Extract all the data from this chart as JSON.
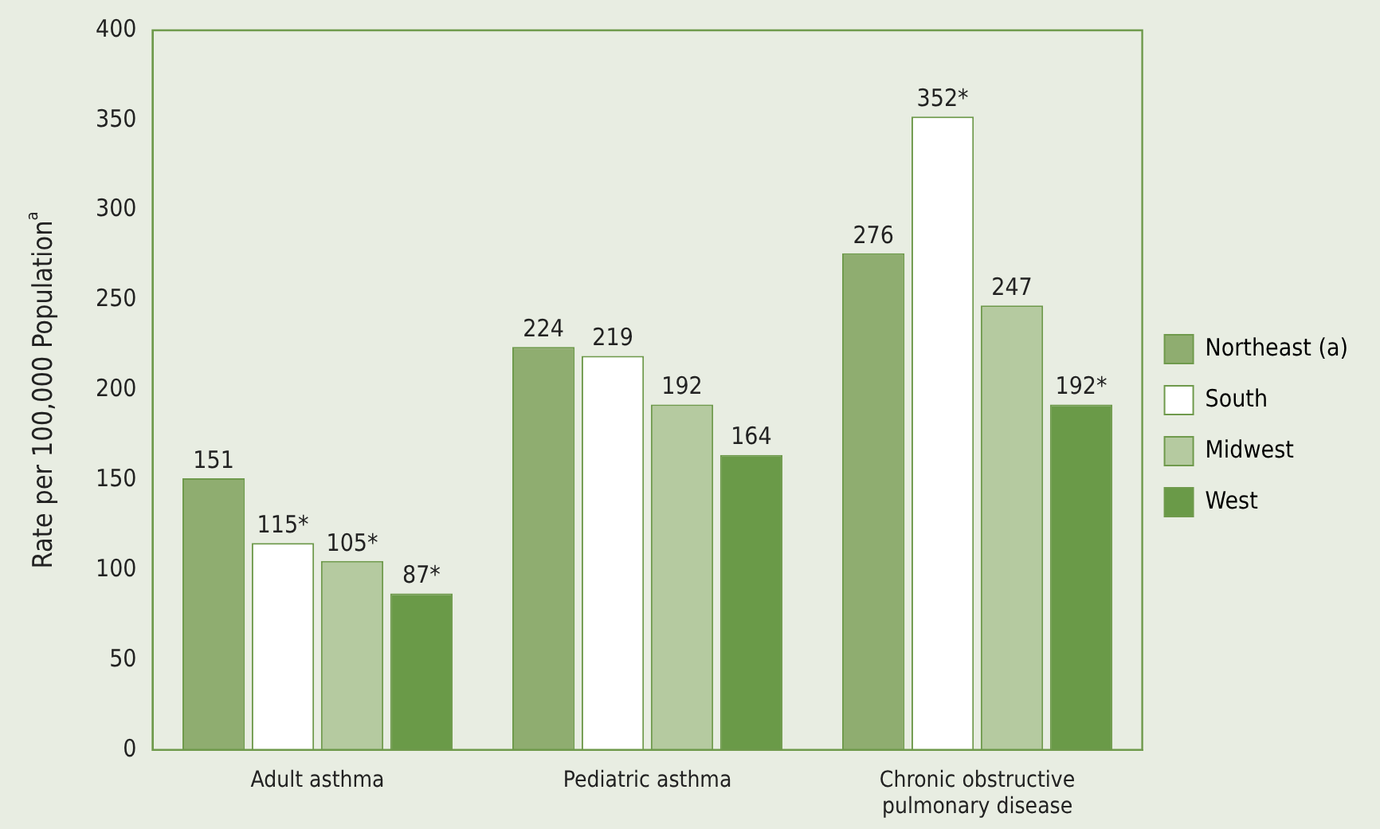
{
  "chart_data": {
    "type": "bar",
    "ylabel": "Rate per 100,000 Population$^{a}$",
    "categories": [
      "Adult asthma",
      "Pediatric asthma",
      "Chronic obstructive pulmonary disease"
    ],
    "series": [
      {
        "name": "Northeast (a)",
        "color": "#8fad70",
        "values": [
          151,
          224,
          276
        ],
        "value_labels": [
          "151",
          "224",
          "276"
        ]
      },
      {
        "name": "South",
        "color": "#ffffff",
        "values": [
          115,
          219,
          352
        ],
        "value_labels": [
          "115*",
          "219",
          "352*"
        ]
      },
      {
        "name": "Midwest",
        "color": "#b5caa0",
        "values": [
          105,
          192,
          247
        ],
        "value_labels": [
          "105*",
          "192",
          "247"
        ]
      },
      {
        "name": "West",
        "color": "#6a9a48",
        "values": [
          87,
          164,
          192
        ],
        "value_labels": [
          "87*",
          "164",
          "192*"
        ]
      }
    ],
    "ylim": [
      0,
      400
    ],
    "yticks": [
      0,
      50,
      100,
      150,
      200,
      250,
      300,
      350,
      400
    ],
    "legend": "right"
  }
}
